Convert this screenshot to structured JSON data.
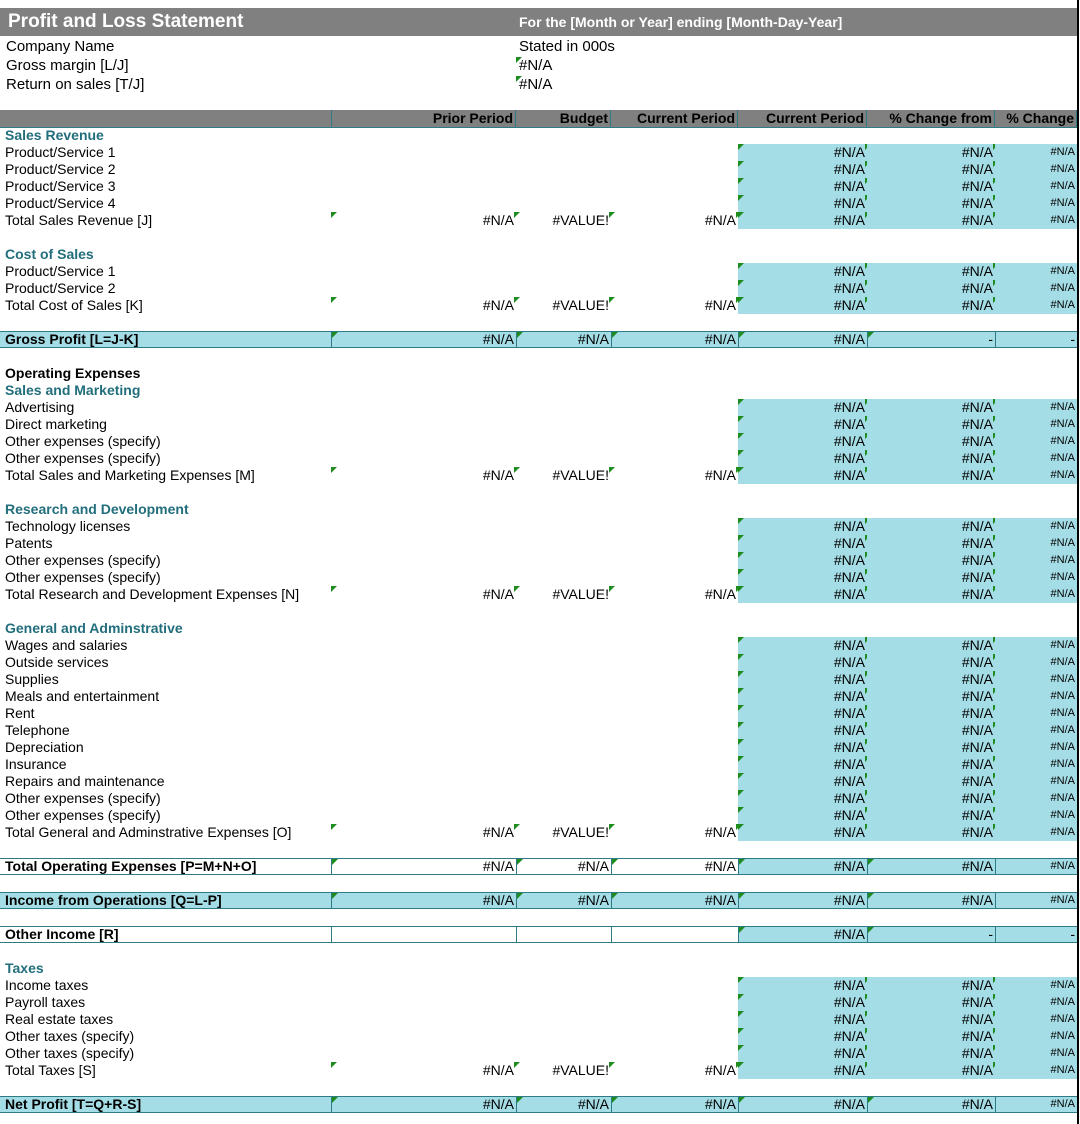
{
  "header": {
    "title": "Profit and Loss Statement",
    "subtitle": "For the [Month or Year] ending [Month-Day-Year]",
    "info": [
      [
        "Company Name",
        "Stated in 000s"
      ],
      [
        "Gross margin  [L/J]",
        "#N/A"
      ],
      [
        "Return on sales  [T/J]",
        "#N/A"
      ]
    ]
  },
  "columns": [
    "Prior Period",
    "Budget",
    "Current Period",
    "Current Period",
    "% Change from",
    "% Change"
  ],
  "blocks": [
    {
      "title": "Sales Revenue",
      "rows": [
        {
          "label": "Product/Service 1",
          "cells": [
            null,
            null,
            null,
            "#N/A",
            "#N/A",
            "#N/A"
          ]
        },
        {
          "label": "Product/Service 2",
          "cells": [
            null,
            null,
            null,
            "#N/A",
            "#N/A",
            "#N/A"
          ]
        },
        {
          "label": "Product/Service 3",
          "cells": [
            null,
            null,
            null,
            "#N/A",
            "#N/A",
            "#N/A"
          ]
        },
        {
          "label": "Product/Service 4",
          "cells": [
            null,
            null,
            null,
            "#N/A",
            "#N/A",
            "#N/A"
          ]
        }
      ],
      "total": {
        "label": "Total Sales Revenue  [J]",
        "cells": [
          "#N/A",
          "#VALUE!",
          "#N/A",
          "#N/A",
          "#N/A",
          "#N/A"
        ]
      }
    },
    {
      "title": "Cost of Sales",
      "rows": [
        {
          "label": "Product/Service 1",
          "cells": [
            null,
            null,
            null,
            "#N/A",
            "#N/A",
            "#N/A"
          ]
        },
        {
          "label": "Product/Service 2",
          "cells": [
            null,
            null,
            null,
            "#N/A",
            "#N/A",
            "#N/A"
          ]
        }
      ],
      "total": {
        "label": "Total Cost of Sales  [K]",
        "cells": [
          "#N/A",
          "#VALUE!",
          "#N/A",
          "#N/A",
          "#N/A",
          "#N/A"
        ]
      }
    },
    {
      "band": {
        "label": "Gross Profit  [L=J-K]",
        "cells": [
          "#N/A",
          "#N/A",
          "#N/A",
          "#N/A",
          "-",
          "-"
        ],
        "fill": "#a5dde6"
      }
    },
    {
      "heading": "Operating Expenses"
    },
    {
      "title": "Sales and Marketing",
      "rows": [
        {
          "label": "Advertising",
          "cells": [
            null,
            null,
            null,
            "#N/A",
            "#N/A",
            "#N/A"
          ]
        },
        {
          "label": "Direct marketing",
          "cells": [
            null,
            null,
            null,
            "#N/A",
            "#N/A",
            "#N/A"
          ]
        },
        {
          "label": "Other expenses (specify)",
          "cells": [
            null,
            null,
            null,
            "#N/A",
            "#N/A",
            "#N/A"
          ]
        },
        {
          "label": "Other expenses (specify)",
          "cells": [
            null,
            null,
            null,
            "#N/A",
            "#N/A",
            "#N/A"
          ]
        }
      ],
      "total": {
        "label": "Total Sales and Marketing Expenses  [M]",
        "cells": [
          "#N/A",
          "#VALUE!",
          "#N/A",
          "#N/A",
          "#N/A",
          "#N/A"
        ]
      }
    },
    {
      "title": "Research and Development",
      "rows": [
        {
          "label": "Technology licenses",
          "cells": [
            null,
            null,
            null,
            "#N/A",
            "#N/A",
            "#N/A"
          ]
        },
        {
          "label": "Patents",
          "cells": [
            null,
            null,
            null,
            "#N/A",
            "#N/A",
            "#N/A"
          ]
        },
        {
          "label": "Other expenses (specify)",
          "cells": [
            null,
            null,
            null,
            "#N/A",
            "#N/A",
            "#N/A"
          ]
        },
        {
          "label": "Other expenses (specify)",
          "cells": [
            null,
            null,
            null,
            "#N/A",
            "#N/A",
            "#N/A"
          ]
        }
      ],
      "total": {
        "label": "Total Research and Development Expenses  [N]",
        "cells": [
          "#N/A",
          "#VALUE!",
          "#N/A",
          "#N/A",
          "#N/A",
          "#N/A"
        ]
      }
    },
    {
      "title": "General and Adminstrative",
      "rows": [
        {
          "label": "Wages and salaries",
          "cells": [
            null,
            null,
            null,
            "#N/A",
            "#N/A",
            "#N/A"
          ]
        },
        {
          "label": "Outside services",
          "cells": [
            null,
            null,
            null,
            "#N/A",
            "#N/A",
            "#N/A"
          ]
        },
        {
          "label": "Supplies",
          "cells": [
            null,
            null,
            null,
            "#N/A",
            "#N/A",
            "#N/A"
          ]
        },
        {
          "label": "Meals and entertainment",
          "cells": [
            null,
            null,
            null,
            "#N/A",
            "#N/A",
            "#N/A"
          ]
        },
        {
          "label": "Rent",
          "cells": [
            null,
            null,
            null,
            "#N/A",
            "#N/A",
            "#N/A"
          ]
        },
        {
          "label": "Telephone",
          "cells": [
            null,
            null,
            null,
            "#N/A",
            "#N/A",
            "#N/A"
          ]
        },
        {
          "label": "Depreciation",
          "cells": [
            null,
            null,
            null,
            "#N/A",
            "#N/A",
            "#N/A"
          ]
        },
        {
          "label": "Insurance",
          "cells": [
            null,
            null,
            null,
            "#N/A",
            "#N/A",
            "#N/A"
          ]
        },
        {
          "label": "Repairs and maintenance",
          "cells": [
            null,
            null,
            null,
            "#N/A",
            "#N/A",
            "#N/A"
          ]
        },
        {
          "label": "Other expenses (specify)",
          "cells": [
            null,
            null,
            null,
            "#N/A",
            "#N/A",
            "#N/A"
          ]
        },
        {
          "label": "Other expenses (specify)",
          "cells": [
            null,
            null,
            null,
            "#N/A",
            "#N/A",
            "#N/A"
          ]
        }
      ],
      "total": {
        "label": "Total General and Adminstrative Expenses  [O]",
        "cells": [
          "#N/A",
          "#VALUE!",
          "#N/A",
          "#N/A",
          "#N/A",
          "#N/A"
        ]
      }
    },
    {
      "band": {
        "label": "Total Operating Expenses  [P=M+N+O]",
        "cells": [
          "#N/A",
          "#N/A",
          "#N/A",
          "#N/A",
          "#N/A",
          "#N/A"
        ],
        "fill": "#ffffff"
      }
    },
    {
      "band": {
        "label": "Income from Operations  [Q=L-P]",
        "cells": [
          "#N/A",
          "#N/A",
          "#N/A",
          "#N/A",
          "#N/A",
          "#N/A"
        ],
        "fill": "#a5dde6"
      }
    },
    {
      "band": {
        "label": "Other Income  [R]",
        "cells": [
          null,
          null,
          null,
          "#N/A",
          "-",
          "-"
        ],
        "fill": "#ffffff"
      }
    },
    {
      "title": "Taxes",
      "rows": [
        {
          "label": "Income taxes",
          "cells": [
            null,
            null,
            null,
            "#N/A",
            "#N/A",
            "#N/A"
          ]
        },
        {
          "label": "Payroll taxes",
          "cells": [
            null,
            null,
            null,
            "#N/A",
            "#N/A",
            "#N/A"
          ]
        },
        {
          "label": "Real estate taxes",
          "cells": [
            null,
            null,
            null,
            "#N/A",
            "#N/A",
            "#N/A"
          ]
        },
        {
          "label": "Other taxes (specify)",
          "cells": [
            null,
            null,
            null,
            "#N/A",
            "#N/A",
            "#N/A"
          ]
        },
        {
          "label": "Other taxes (specify)",
          "cells": [
            null,
            null,
            null,
            "#N/A",
            "#N/A",
            "#N/A"
          ]
        }
      ],
      "total": {
        "label": "Total Taxes  [S]",
        "cells": [
          "#N/A",
          "#VALUE!",
          "#N/A",
          "#N/A",
          "#N/A",
          "#N/A"
        ]
      }
    },
    {
      "band": {
        "label": "Net Profit  [T=Q+R-S]",
        "cells": [
          "#N/A",
          "#N/A",
          "#N/A",
          "#N/A",
          "#N/A",
          "#N/A"
        ],
        "fill": "#a5dde6"
      }
    }
  ]
}
